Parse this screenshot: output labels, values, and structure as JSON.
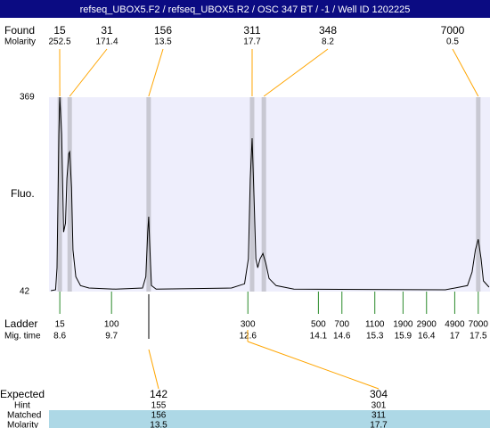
{
  "title": "refseq_UBOX5.F2 / refseq_UBOX5.R2 / OSC 347 BT  / -1  / Well ID 1202225",
  "chart_data": {
    "type": "line",
    "y_label": "Fluo.",
    "xlim": [
      8.37,
      17.75
    ],
    "ylim": [
      42,
      369
    ],
    "yticks": [
      42,
      369
    ],
    "color": "#000000",
    "x": [
      8.41,
      8.51,
      8.54,
      8.58,
      8.6,
      8.64,
      8.68,
      8.72,
      8.75,
      8.79,
      8.81,
      8.85,
      8.88,
      8.94,
      9.04,
      9.22,
      9.79,
      10.36,
      10.43,
      10.47,
      10.49,
      10.51,
      10.55,
      10.65,
      12.25,
      12.53,
      12.61,
      12.65,
      12.69,
      12.73,
      12.77,
      12.81,
      12.86,
      12.92,
      12.98,
      13.05,
      13.2,
      13.58,
      16.8,
      17.27,
      17.37,
      17.44,
      17.5,
      17.56,
      17.61,
      17.73
    ],
    "values": [
      43.5,
      45,
      82,
      307,
      369,
      307,
      142,
      157,
      232,
      274,
      277,
      217,
      112,
      67,
      52,
      48,
      46,
      48,
      67,
      142,
      168,
      127,
      52,
      46,
      48,
      55,
      97,
      232,
      300,
      202,
      97,
      82,
      97,
      106,
      90,
      64,
      52,
      46,
      45,
      52,
      75,
      112,
      130,
      97,
      60,
      49.5
    ],
    "found": {
      "label": "Found",
      "molarity_label": "Molarity",
      "sizes": [
        15,
        31,
        156,
        311,
        348,
        7000
      ],
      "molarity": [
        252.5,
        171.4,
        13.5,
        17.7,
        8.2,
        0.5
      ],
      "times": [
        8.6,
        8.81,
        10.49,
        12.69,
        12.94,
        17.5
      ]
    },
    "ladder": {
      "label": "Ladder",
      "time_label": "Mig. time",
      "sizes": [
        15,
        100,
        300,
        500,
        700,
        1100,
        1900,
        2900,
        4900,
        7000
      ],
      "times": [
        8.6,
        9.7,
        12.6,
        14.1,
        14.6,
        15.3,
        15.9,
        16.4,
        17,
        17.5
      ]
    },
    "expected": {
      "label": "Expected",
      "hint_label": "Hint",
      "matched_label": "Matched",
      "molarity_label": "Molarity",
      "sizes": [
        142,
        304
      ],
      "hint": [
        155,
        301
      ],
      "matched": [
        156,
        311
      ],
      "molarity": [
        13.5,
        17.7
      ]
    }
  }
}
